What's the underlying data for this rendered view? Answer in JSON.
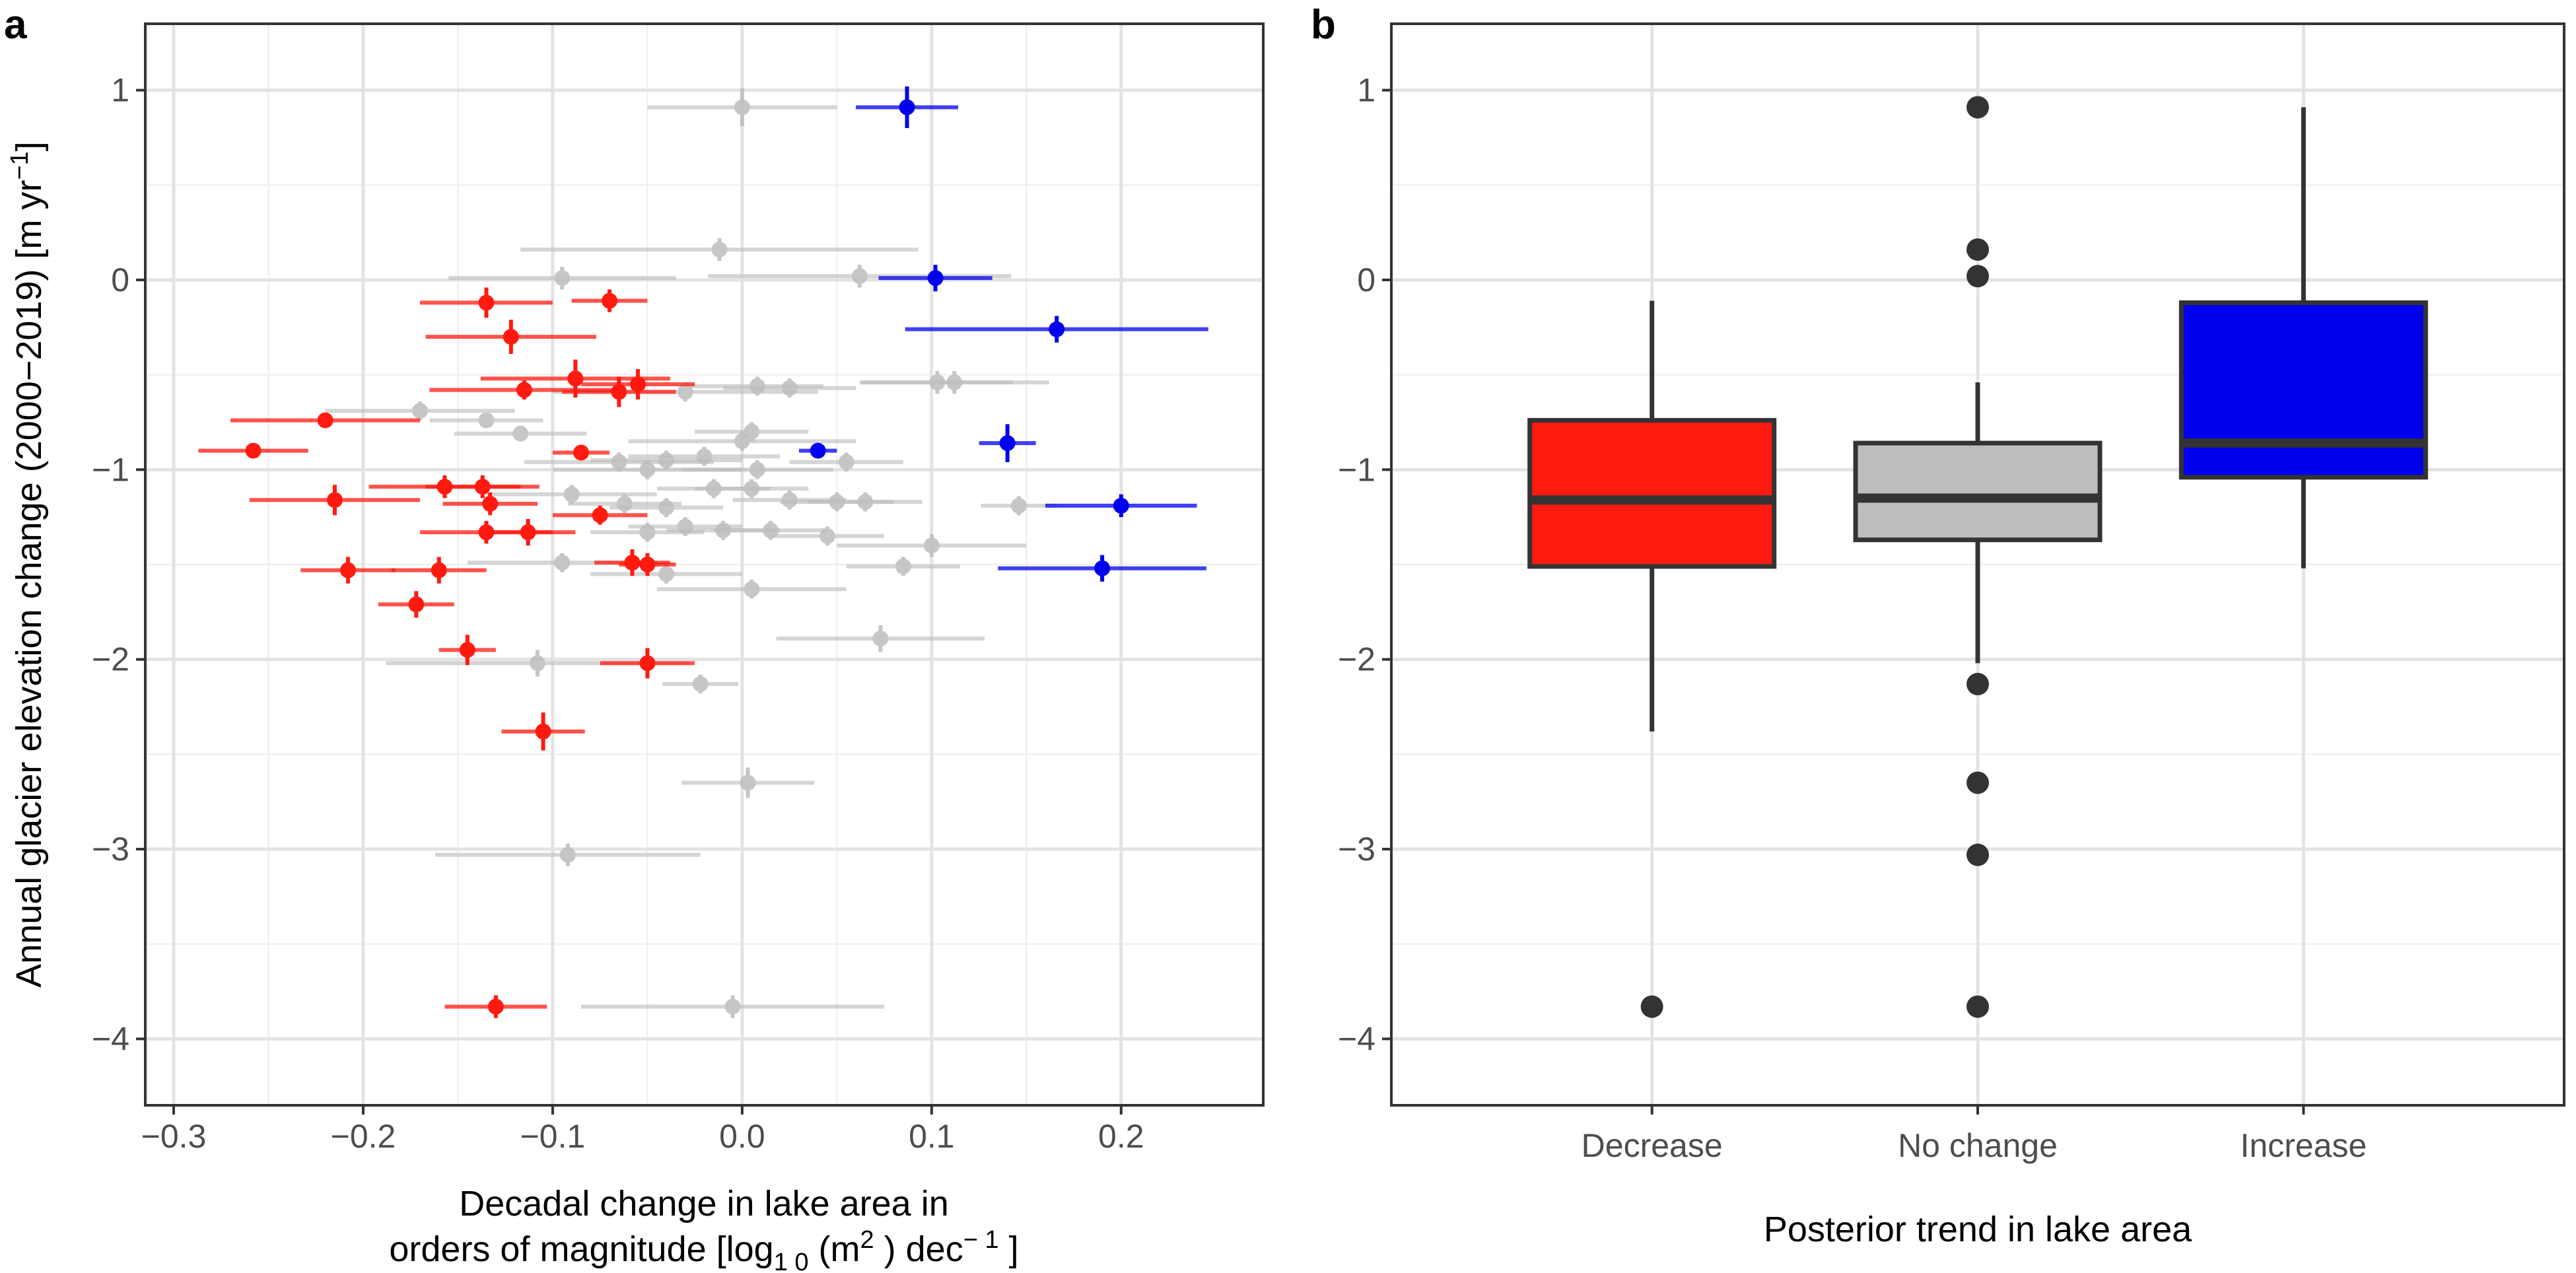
{
  "colors": {
    "decrease": "#ff1a10",
    "no_change": "#bdbdbd",
    "increase": "#0000ee",
    "median": "#333333",
    "outlier": "#333333"
  },
  "chart_data": [
    {
      "panel": "a",
      "type": "scatter",
      "xlabel_line1": "Decadal change in lake area in",
      "xlabel_line2_prefix": "orders of magnitude [log",
      "xlabel_line2_sub": "1 0",
      "xlabel_line2_mid": " (m",
      "xlabel_line2_sup1": "2",
      "xlabel_line2_mid2": " ) dec",
      "xlabel_line2_sup2": "− 1",
      "xlabel_line2_suffix": " ]",
      "ylabel_main": "Annual glacier elevation change (2000−2019) [m yr",
      "ylabel_sup": "−1",
      "ylabel_suffix": "]",
      "xlim": [
        -0.315,
        0.275
      ],
      "ylim": [
        -4.35,
        1.35
      ],
      "x_ticks": [
        -0.3,
        -0.2,
        -0.1,
        0.0,
        0.1,
        0.2
      ],
      "x_tick_labels": [
        "−0.3",
        "−0.2",
        "−0.1",
        "0.0",
        "0.1",
        "0.2"
      ],
      "y_ticks": [
        -4,
        -3,
        -2,
        -1,
        0,
        1
      ],
      "y_tick_labels": [
        "−4",
        "−3",
        "−2",
        "−1",
        "0",
        "1"
      ],
      "series": [
        {
          "name": "Decrease",
          "color_key": "decrease",
          "points": [
            {
              "x": -0.258,
              "y": -0.9,
              "xerr": 0.029,
              "yerr": 0.03
            },
            {
              "x": -0.22,
              "y": -0.74,
              "xerr": 0.05,
              "yerr": 0.04
            },
            {
              "x": -0.215,
              "y": -1.16,
              "xerr": 0.045,
              "yerr": 0.08
            },
            {
              "x": -0.208,
              "y": -1.53,
              "xerr": 0.025,
              "yerr": 0.07
            },
            {
              "x": -0.172,
              "y": -1.71,
              "xerr": 0.02,
              "yerr": 0.07
            },
            {
              "x": -0.16,
              "y": -1.53,
              "xerr": 0.025,
              "yerr": 0.07
            },
            {
              "x": -0.157,
              "y": -1.09,
              "xerr": 0.04,
              "yerr": 0.06
            },
            {
              "x": -0.145,
              "y": -1.95,
              "xerr": 0.015,
              "yerr": 0.08
            },
            {
              "x": -0.137,
              "y": -1.09,
              "xerr": 0.03,
              "yerr": 0.06
            },
            {
              "x": -0.135,
              "y": -1.33,
              "xerr": 0.035,
              "yerr": 0.06
            },
            {
              "x": -0.135,
              "y": -0.12,
              "xerr": 0.035,
              "yerr": 0.08
            },
            {
              "x": -0.133,
              "y": -1.18,
              "xerr": 0.025,
              "yerr": 0.06
            },
            {
              "x": -0.13,
              "y": -3.83,
              "xerr": 0.027,
              "yerr": 0.06
            },
            {
              "x": -0.122,
              "y": -0.3,
              "xerr": 0.045,
              "yerr": 0.09
            },
            {
              "x": -0.115,
              "y": -0.58,
              "xerr": 0.05,
              "yerr": 0.05
            },
            {
              "x": -0.113,
              "y": -1.33,
              "xerr": 0.025,
              "yerr": 0.07
            },
            {
              "x": -0.105,
              "y": -2.38,
              "xerr": 0.022,
              "yerr": 0.1
            },
            {
              "x": -0.088,
              "y": -0.52,
              "xerr": 0.05,
              "yerr": 0.1
            },
            {
              "x": -0.085,
              "y": -0.91,
              "xerr": 0.015,
              "yerr": 0.03
            },
            {
              "x": -0.075,
              "y": -1.24,
              "xerr": 0.025,
              "yerr": 0.05
            },
            {
              "x": -0.07,
              "y": -0.11,
              "xerr": 0.02,
              "yerr": 0.06
            },
            {
              "x": -0.065,
              "y": -0.59,
              "xerr": 0.03,
              "yerr": 0.08
            },
            {
              "x": -0.058,
              "y": -1.49,
              "xerr": 0.02,
              "yerr": 0.07
            },
            {
              "x": -0.055,
              "y": -0.55,
              "xerr": 0.03,
              "yerr": 0.08
            },
            {
              "x": -0.05,
              "y": -2.02,
              "xerr": 0.025,
              "yerr": 0.08
            },
            {
              "x": -0.05,
              "y": -1.5,
              "xerr": 0.015,
              "yerr": 0.06
            }
          ]
        },
        {
          "name": "No change",
          "color_key": "no_change",
          "points": [
            {
              "x": 0.0,
              "y": 0.91,
              "xerr": 0.05,
              "yerr": 0.1
            },
            {
              "x": -0.012,
              "y": 0.16,
              "xerr": 0.105,
              "yerr": 0.06
            },
            {
              "x": -0.095,
              "y": 0.01,
              "xerr": 0.06,
              "yerr": 0.06
            },
            {
              "x": 0.062,
              "y": 0.02,
              "xerr": 0.08,
              "yerr": 0.06
            },
            {
              "x": -0.17,
              "y": -0.69,
              "xerr": 0.05,
              "yerr": 0.05
            },
            {
              "x": -0.135,
              "y": -0.74,
              "xerr": 0.03,
              "yerr": 0.04
            },
            {
              "x": -0.117,
              "y": -0.81,
              "xerr": 0.035,
              "yerr": 0.04
            },
            {
              "x": -0.03,
              "y": -0.59,
              "xerr": 0.07,
              "yerr": 0.05
            },
            {
              "x": 0.008,
              "y": -0.56,
              "xerr": 0.035,
              "yerr": 0.05
            },
            {
              "x": 0.025,
              "y": -0.57,
              "xerr": 0.035,
              "yerr": 0.05
            },
            {
              "x": 0.103,
              "y": -0.54,
              "xerr": 0.04,
              "yerr": 0.06
            },
            {
              "x": 0.112,
              "y": -0.54,
              "xerr": 0.05,
              "yerr": 0.06
            },
            {
              "x": 0.0,
              "y": -0.85,
              "xerr": 0.06,
              "yerr": 0.05
            },
            {
              "x": -0.065,
              "y": -0.96,
              "xerr": 0.05,
              "yerr": 0.05
            },
            {
              "x": -0.05,
              "y": -1.0,
              "xerr": 0.05,
              "yerr": 0.05
            },
            {
              "x": -0.04,
              "y": -0.95,
              "xerr": 0.04,
              "yerr": 0.05
            },
            {
              "x": -0.02,
              "y": -0.93,
              "xerr": 0.04,
              "yerr": 0.05
            },
            {
              "x": 0.005,
              "y": -0.8,
              "xerr": 0.03,
              "yerr": 0.05
            },
            {
              "x": 0.008,
              "y": -1.0,
              "xerr": 0.04,
              "yerr": 0.05
            },
            {
              "x": 0.055,
              "y": -0.96,
              "xerr": 0.03,
              "yerr": 0.05
            },
            {
              "x": -0.09,
              "y": -1.13,
              "xerr": 0.045,
              "yerr": 0.05
            },
            {
              "x": -0.062,
              "y": -1.18,
              "xerr": 0.03,
              "yerr": 0.05
            },
            {
              "x": -0.04,
              "y": -1.2,
              "xerr": 0.03,
              "yerr": 0.05
            },
            {
              "x": -0.015,
              "y": -1.1,
              "xerr": 0.03,
              "yerr": 0.05
            },
            {
              "x": 0.005,
              "y": -1.1,
              "xerr": 0.03,
              "yerr": 0.05
            },
            {
              "x": 0.025,
              "y": -1.16,
              "xerr": 0.03,
              "yerr": 0.05
            },
            {
              "x": 0.05,
              "y": -1.17,
              "xerr": 0.03,
              "yerr": 0.05
            },
            {
              "x": 0.065,
              "y": -1.17,
              "xerr": 0.03,
              "yerr": 0.05
            },
            {
              "x": 0.146,
              "y": -1.19,
              "xerr": 0.02,
              "yerr": 0.05
            },
            {
              "x": -0.05,
              "y": -1.33,
              "xerr": 0.03,
              "yerr": 0.05
            },
            {
              "x": -0.03,
              "y": -1.3,
              "xerr": 0.03,
              "yerr": 0.05
            },
            {
              "x": -0.01,
              "y": -1.32,
              "xerr": 0.03,
              "yerr": 0.05
            },
            {
              "x": 0.015,
              "y": -1.32,
              "xerr": 0.03,
              "yerr": 0.05
            },
            {
              "x": 0.045,
              "y": -1.35,
              "xerr": 0.03,
              "yerr": 0.05
            },
            {
              "x": 0.1,
              "y": -1.4,
              "xerr": 0.05,
              "yerr": 0.06
            },
            {
              "x": -0.095,
              "y": -1.49,
              "xerr": 0.05,
              "yerr": 0.05
            },
            {
              "x": -0.04,
              "y": -1.55,
              "xerr": 0.04,
              "yerr": 0.05
            },
            {
              "x": 0.085,
              "y": -1.51,
              "xerr": 0.03,
              "yerr": 0.05
            },
            {
              "x": 0.005,
              "y": -1.63,
              "xerr": 0.05,
              "yerr": 0.05
            },
            {
              "x": 0.073,
              "y": -1.89,
              "xerr": 0.055,
              "yerr": 0.07
            },
            {
              "x": -0.108,
              "y": -2.02,
              "xerr": 0.08,
              "yerr": 0.07
            },
            {
              "x": -0.022,
              "y": -2.13,
              "xerr": 0.02,
              "yerr": 0.05
            },
            {
              "x": 0.003,
              "y": -2.65,
              "xerr": 0.035,
              "yerr": 0.08
            },
            {
              "x": -0.092,
              "y": -3.03,
              "xerr": 0.07,
              "yerr": 0.06
            },
            {
              "x": -0.005,
              "y": -3.83,
              "xerr": 0.08,
              "yerr": 0.06
            }
          ]
        },
        {
          "name": "Increase",
          "color_key": "increase",
          "points": [
            {
              "x": 0.087,
              "y": 0.91,
              "xerr": 0.027,
              "yerr": 0.11
            },
            {
              "x": 0.102,
              "y": 0.01,
              "xerr": 0.03,
              "yerr": 0.07
            },
            {
              "x": 0.166,
              "y": -0.26,
              "xerr": 0.08,
              "yerr": 0.07
            },
            {
              "x": 0.04,
              "y": -0.9,
              "xerr": 0.01,
              "yerr": 0.03
            },
            {
              "x": 0.14,
              "y": -0.86,
              "xerr": 0.015,
              "yerr": 0.1
            },
            {
              "x": 0.2,
              "y": -1.19,
              "xerr": 0.04,
              "yerr": 0.06
            },
            {
              "x": 0.19,
              "y": -1.52,
              "xerr": 0.055,
              "yerr": 0.07
            }
          ]
        }
      ]
    },
    {
      "panel": "b",
      "type": "box",
      "xlabel": "Posterior trend in lake area",
      "ylim": [
        -4.35,
        1.35
      ],
      "y_ticks": [
        -4,
        -3,
        -2,
        -1,
        0,
        1
      ],
      "y_tick_labels": [
        "−4",
        "−3",
        "−2",
        "−1",
        "0",
        "1"
      ],
      "categories": [
        "Decrease",
        "No change",
        "Increase"
      ],
      "boxes": [
        {
          "category": "Decrease",
          "color_key": "decrease",
          "whisker_low": -2.38,
          "q1": -1.51,
          "median": -1.16,
          "q3": -0.74,
          "whisker_high": -0.11,
          "outliers": [
            -3.83
          ]
        },
        {
          "category": "No change",
          "color_key": "no_change",
          "whisker_low": -2.02,
          "q1": -1.37,
          "median": -1.15,
          "q3": -0.86,
          "whisker_high": -0.54,
          "outliers": [
            0.91,
            0.16,
            0.02,
            -2.13,
            -2.65,
            -3.03,
            -3.83
          ]
        },
        {
          "category": "Increase",
          "color_key": "increase",
          "whisker_low": -1.52,
          "q1": -1.04,
          "median": -0.86,
          "q3": -0.12,
          "whisker_high": 0.91,
          "outliers": []
        }
      ]
    }
  ]
}
